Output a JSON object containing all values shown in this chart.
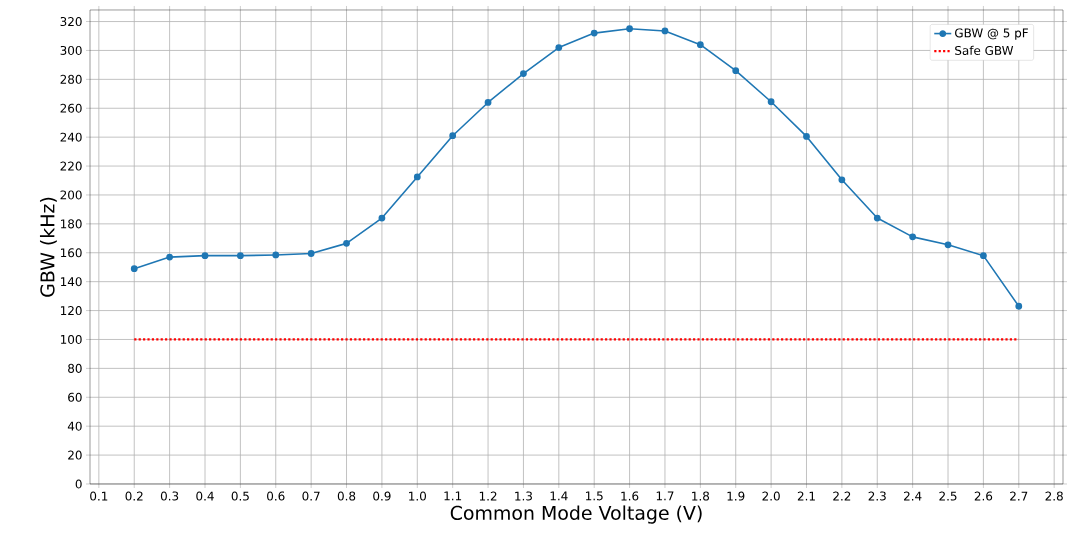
{
  "chart_data": {
    "type": "line",
    "xlabel": "Common Mode Voltage (V)",
    "ylabel": "GBW (kHz)",
    "x": [
      0.2,
      0.3,
      0.4,
      0.5,
      0.6,
      0.7,
      0.8,
      0.9,
      1.0,
      1.1,
      1.2,
      1.3,
      1.4,
      1.5,
      1.6,
      1.7,
      1.8,
      1.9,
      2.0,
      2.1,
      2.2,
      2.3,
      2.4,
      2.5,
      2.6,
      2.7
    ],
    "series": [
      {
        "name": "GBW @ 5 pF",
        "color": "#1f77b4",
        "marker": "circle",
        "line_style": "solid",
        "values": [
          149,
          157,
          158,
          158,
          158.5,
          159.5,
          166.5,
          184,
          212.5,
          241,
          264,
          284,
          302,
          312,
          315,
          313.5,
          304,
          286,
          264.5,
          240.5,
          210.5,
          184,
          171,
          165.5,
          158,
          123
        ]
      },
      {
        "name": "Safe GBW",
        "color": "#ff0000",
        "marker": "none",
        "line_style": "dotted",
        "x": [
          0.2,
          2.7
        ],
        "values": [
          100,
          100
        ]
      }
    ],
    "xlim": [
      0.075,
      2.825
    ],
    "ylim": [
      0,
      328
    ],
    "xticks": [
      0.1,
      0.2,
      0.3,
      0.4,
      0.5,
      0.6,
      0.7,
      0.8,
      0.9,
      {
        "value": 1.0,
        "label": "1.0"
      },
      1.1,
      1.2,
      1.3,
      1.4,
      1.5,
      1.6,
      1.7,
      1.8,
      1.9,
      {
        "value": 2.0,
        "label": "2.0"
      },
      2.1,
      2.2,
      2.3,
      2.4,
      2.5,
      2.6,
      2.7,
      2.8
    ],
    "yticks": [
      0,
      20,
      40,
      60,
      80,
      100,
      120,
      140,
      160,
      180,
      200,
      220,
      240,
      260,
      280,
      300,
      320
    ],
    "grid": true,
    "legend": "top right"
  }
}
